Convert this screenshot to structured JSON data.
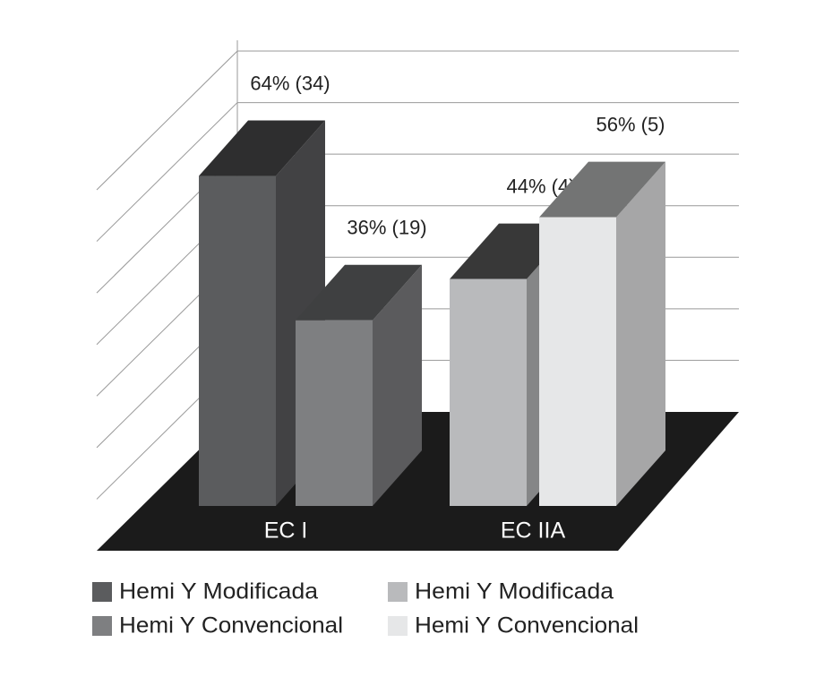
{
  "chart_data": {
    "type": "bar3d",
    "categories": [
      "EC I",
      "EC IIA"
    ],
    "series": [
      {
        "name": "Hemi Y Modificada",
        "color": "#5b5c5e",
        "values": [
          64,
          null
        ],
        "value_labels": [
          "64% (34)",
          null
        ]
      },
      {
        "name": "Hemi Y Convencional",
        "color": "#7e7f81",
        "values": [
          36,
          null
        ],
        "value_labels": [
          "36% (19)",
          null
        ]
      },
      {
        "name": "Hemi Y Modificada",
        "color": "#b9babc",
        "values": [
          null,
          44
        ],
        "value_labels": [
          null,
          "44% (4)"
        ]
      },
      {
        "name": "Hemi Y Convencional",
        "color": "#e6e7e8",
        "values": [
          null,
          56
        ],
        "value_labels": [
          null,
          "56% (5)"
        ]
      }
    ],
    "ylim": [
      0,
      70
    ],
    "yticks": [
      0,
      10,
      20,
      30,
      40,
      50,
      60,
      70
    ],
    "grid": true
  }
}
